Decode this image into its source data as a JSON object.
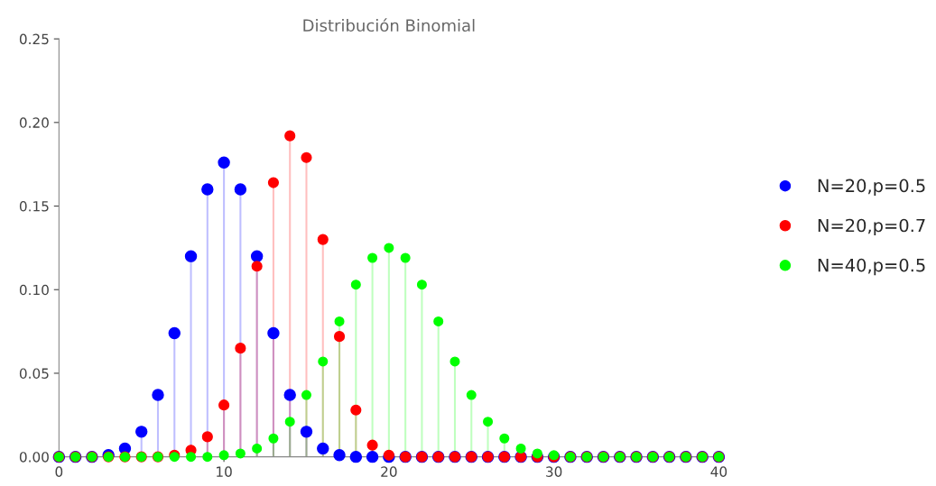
{
  "chart_data": {
    "type": "lollipop",
    "title": "Distribución Binomial",
    "x": [
      0,
      1,
      2,
      3,
      4,
      5,
      6,
      7,
      8,
      9,
      10,
      11,
      12,
      13,
      14,
      15,
      16,
      17,
      18,
      19,
      20,
      21,
      22,
      23,
      24,
      25,
      26,
      27,
      28,
      29,
      30,
      31,
      32,
      33,
      34,
      35,
      36,
      37,
      38,
      39,
      40
    ],
    "series": [
      {
        "name": "N=20,p=0.5",
        "color": "#0000ff",
        "values": [
          0,
          0,
          0,
          0.001,
          0.005,
          0.015,
          0.037,
          0.074,
          0.12,
          0.16,
          0.176,
          0.16,
          0.12,
          0.074,
          0.037,
          0.015,
          0.005,
          0.001,
          0,
          0,
          0,
          0,
          0,
          0,
          0,
          0,
          0,
          0,
          0,
          0,
          0,
          0,
          0,
          0,
          0,
          0,
          0,
          0,
          0,
          0,
          0
        ]
      },
      {
        "name": "N=20,p=0.7",
        "color": "#ff0000",
        "values": [
          0,
          0,
          0,
          0,
          0,
          0,
          0,
          0.001,
          0.004,
          0.012,
          0.031,
          0.065,
          0.114,
          0.164,
          0.192,
          0.179,
          0.13,
          0.072,
          0.028,
          0.007,
          0.001,
          0,
          0,
          0,
          0,
          0,
          0,
          0,
          0,
          0,
          0,
          0,
          0,
          0,
          0,
          0,
          0,
          0,
          0,
          0,
          0
        ]
      },
      {
        "name": "N=40,p=0.5",
        "color": "#00ff00",
        "values": [
          0,
          0,
          0,
          0,
          0,
          0,
          0,
          0,
          0,
          0,
          0.001,
          0.002,
          0.005,
          0.011,
          0.021,
          0.037,
          0.057,
          0.081,
          0.103,
          0.119,
          0.125,
          0.119,
          0.103,
          0.081,
          0.057,
          0.037,
          0.021,
          0.011,
          0.005,
          0.002,
          0.001,
          0,
          0,
          0,
          0,
          0,
          0,
          0,
          0,
          0,
          0
        ]
      }
    ],
    "xlim": [
      0,
      40
    ],
    "xticks": [
      0,
      10,
      20,
      30,
      40
    ],
    "ylim": [
      0,
      0.25
    ],
    "yticks": [
      {
        "value": 0,
        "label": "0.00"
      },
      {
        "value": 0.05,
        "label": "0.05"
      },
      {
        "value": 0.1,
        "label": "0.10"
      },
      {
        "value": 0.15,
        "label": "0.15"
      },
      {
        "value": 0.2,
        "label": "0.20"
      },
      {
        "value": 0.25,
        "label": "0.25"
      }
    ],
    "marker": "circle",
    "legend": "right",
    "grid": false
  }
}
